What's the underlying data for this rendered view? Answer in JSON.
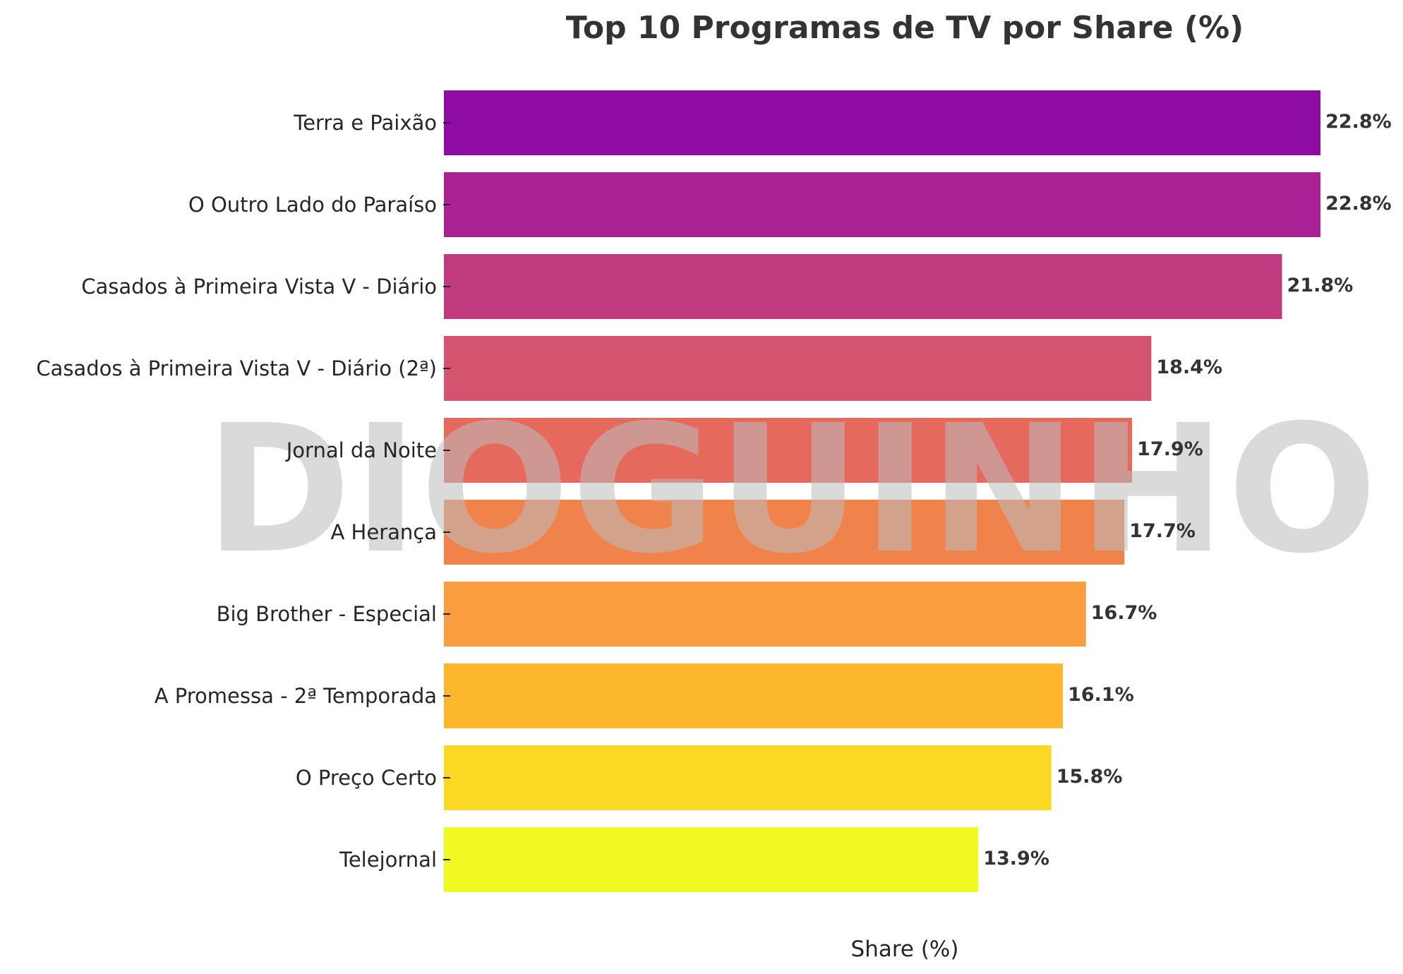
{
  "chart_data": {
    "type": "bar",
    "orientation": "horizontal",
    "title": "Top 10 Programas de TV por Share (%)",
    "xlabel": "Share (%)",
    "ylabel": "",
    "xlim": [
      0,
      23.9
    ],
    "grid": false,
    "legend": "none",
    "categories": [
      "Terra e Paixão",
      "O Outro Lado do Paraíso",
      "Casados à Primeira Vista V - Diário",
      "Casados à Primeira Vista V - Diário (2ª)",
      "Jornal da Noite",
      "A Herança",
      "Big Brother - Especial",
      "A Promessa - 2ª Temporada",
      "O Preço Certo",
      "Telejornal"
    ],
    "values": [
      22.8,
      22.8,
      21.8,
      18.4,
      17.9,
      17.7,
      16.7,
      16.1,
      15.8,
      13.9
    ],
    "value_labels": [
      "22.8%",
      "22.8%",
      "21.8%",
      "18.4%",
      "17.9%",
      "17.7%",
      "16.7%",
      "16.1%",
      "15.8%",
      "13.9%"
    ],
    "colors": [
      "#8e0ca4",
      "#aa2193",
      "#c03a80",
      "#d4536e",
      "#e56a5d",
      "#f0834c",
      "#f99d3e",
      "#fcb72e",
      "#fad824",
      "#f0f921"
    ],
    "watermark": "DIOGUINHO"
  }
}
